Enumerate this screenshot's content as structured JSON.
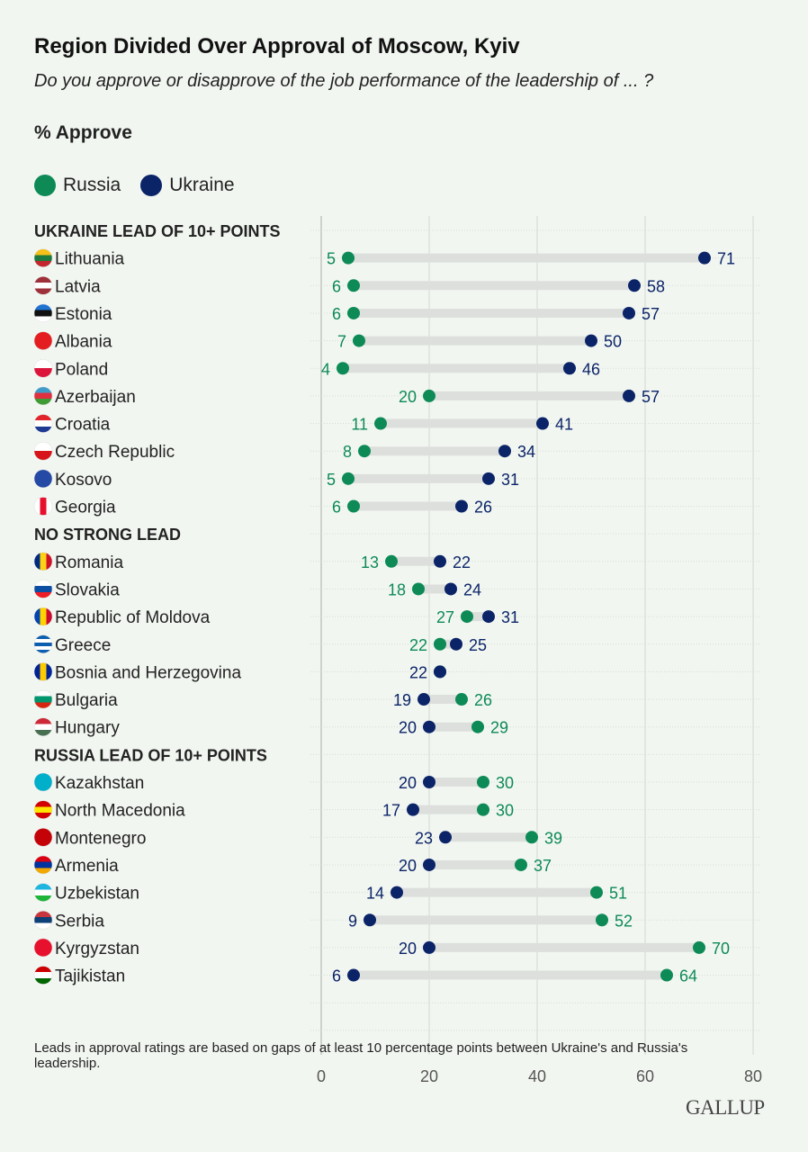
{
  "title": "Region Divided Over Approval of Moscow, Kyiv",
  "subtitle": "Do you approve or disapprove of the job performance of the leadership of ... ?",
  "measure": "% Approve",
  "note": "Leads in approval ratings are based on gaps of at least 10 percentage points between Ukraine's and Russia's leadership.",
  "logo": "GALLUP",
  "colors": {
    "Russia": "#0d8a56",
    "Ukraine": "#0b2468",
    "track": "#dcdfdc",
    "grid": "#d4d8d3"
  },
  "chart_data": {
    "type": "dumbbell",
    "xlim": [
      0,
      80
    ],
    "xticks": [
      "0",
      "20",
      "40",
      "60",
      "80"
    ],
    "grid": true,
    "legend_placement": "top-left",
    "series": [
      {
        "name": "Russia"
      },
      {
        "name": "Ukraine"
      }
    ],
    "groups": [
      {
        "label": "UKRAINE LEAD OF 10+ POINTS",
        "rows": [
          {
            "country": "Lithuania",
            "russia": 5,
            "ukraine": 71,
            "flag": [
              "#f5c018",
              "#1d7a3e",
              "#c1272d"
            ],
            "dir": "h"
          },
          {
            "country": "Latvia",
            "russia": 6,
            "ukraine": 58,
            "flag": [
              "#9e3039",
              "#ffffff",
              "#9e3039"
            ],
            "dir": "h"
          },
          {
            "country": "Estonia",
            "russia": 6,
            "ukraine": 57,
            "flag": [
              "#1f74d1",
              "#111111",
              "#ffffff"
            ],
            "dir": "h"
          },
          {
            "country": "Albania",
            "russia": 7,
            "ukraine": 50,
            "flag": [
              "#e41e20",
              "#e41e20"
            ],
            "dir": "h"
          },
          {
            "country": "Poland",
            "russia": 4,
            "ukraine": 46,
            "flag": [
              "#ffffff",
              "#dc143c"
            ],
            "dir": "h"
          },
          {
            "country": "Azerbaijan",
            "russia": 20,
            "ukraine": 57,
            "flag": [
              "#3f9cc9",
              "#e0303f",
              "#3f9c35"
            ],
            "dir": "h"
          },
          {
            "country": "Croatia",
            "russia": 11,
            "ukraine": 41,
            "flag": [
              "#e3232a",
              "#ffffff",
              "#1f3a93"
            ],
            "dir": "h"
          },
          {
            "country": "Czech Republic",
            "russia": 8,
            "ukraine": 34,
            "flag": [
              "#ffffff",
              "#d7141a"
            ],
            "dir": "h"
          },
          {
            "country": "Kosovo",
            "russia": 5,
            "ukraine": 31,
            "flag": [
              "#244aa5",
              "#244aa5"
            ],
            "dir": "h"
          },
          {
            "country": "Georgia",
            "russia": 6,
            "ukraine": 26,
            "flag": [
              "#ffffff",
              "#e8112d",
              "#ffffff"
            ],
            "dir": "v"
          }
        ]
      },
      {
        "label": "NO STRONG LEAD",
        "rows": [
          {
            "country": "Romania",
            "russia": 13,
            "ukraine": 22,
            "flag": [
              "#002b7f",
              "#fcd116",
              "#ce1126"
            ],
            "dir": "v"
          },
          {
            "country": "Slovakia",
            "russia": 18,
            "ukraine": 24,
            "flag": [
              "#ffffff",
              "#0b4ea2",
              "#ee1c25"
            ],
            "dir": "h"
          },
          {
            "country": "Republic of Moldova",
            "russia": 27,
            "ukraine": 31,
            "flag": [
              "#0046ae",
              "#ffd200",
              "#cc092f"
            ],
            "dir": "v"
          },
          {
            "country": "Greece",
            "russia": 22,
            "ukraine": 25,
            "flag": [
              "#0d5eaf",
              "#ffffff",
              "#0d5eaf",
              "#ffffff",
              "#0d5eaf"
            ],
            "dir": "h"
          },
          {
            "country": "Bosnia and Herzegovina",
            "russia": 22,
            "ukraine": 22,
            "flag": [
              "#002395",
              "#fecb00",
              "#002395"
            ],
            "dir": "v"
          },
          {
            "country": "Bulgaria",
            "russia": 26,
            "ukraine": 19,
            "flag": [
              "#ffffff",
              "#00966e",
              "#d62612"
            ],
            "dir": "h"
          },
          {
            "country": "Hungary",
            "russia": 29,
            "ukraine": 20,
            "flag": [
              "#ce2939",
              "#ffffff",
              "#477050"
            ],
            "dir": "h"
          }
        ]
      },
      {
        "label": "RUSSIA LEAD OF 10+ POINTS",
        "rows": [
          {
            "country": "Kazakhstan",
            "russia": 30,
            "ukraine": 20,
            "flag": [
              "#00afca",
              "#00afca"
            ],
            "dir": "h"
          },
          {
            "country": "North Macedonia",
            "russia": 30,
            "ukraine": 17,
            "flag": [
              "#d20000",
              "#ffe600",
              "#d20000"
            ],
            "dir": "h"
          },
          {
            "country": "Montenegro",
            "russia": 39,
            "ukraine": 23,
            "flag": [
              "#c40308",
              "#c40308"
            ],
            "dir": "h"
          },
          {
            "country": "Armenia",
            "russia": 37,
            "ukraine": 20,
            "flag": [
              "#d90012",
              "#0033a0",
              "#f2a800"
            ],
            "dir": "h"
          },
          {
            "country": "Uzbekistan",
            "russia": 51,
            "ukraine": 14,
            "flag": [
              "#1eb5e0",
              "#ffffff",
              "#1eb53a"
            ],
            "dir": "h"
          },
          {
            "country": "Serbia",
            "russia": 52,
            "ukraine": 9,
            "flag": [
              "#c6363c",
              "#0c4076",
              "#ffffff"
            ],
            "dir": "h"
          },
          {
            "country": "Kyrgyzstan",
            "russia": 70,
            "ukraine": 20,
            "flag": [
              "#e8112d",
              "#e8112d"
            ],
            "dir": "h"
          },
          {
            "country": "Tajikistan",
            "russia": 64,
            "ukraine": 6,
            "flag": [
              "#cc0000",
              "#ffffff",
              "#006600"
            ],
            "dir": "h"
          }
        ]
      }
    ]
  }
}
